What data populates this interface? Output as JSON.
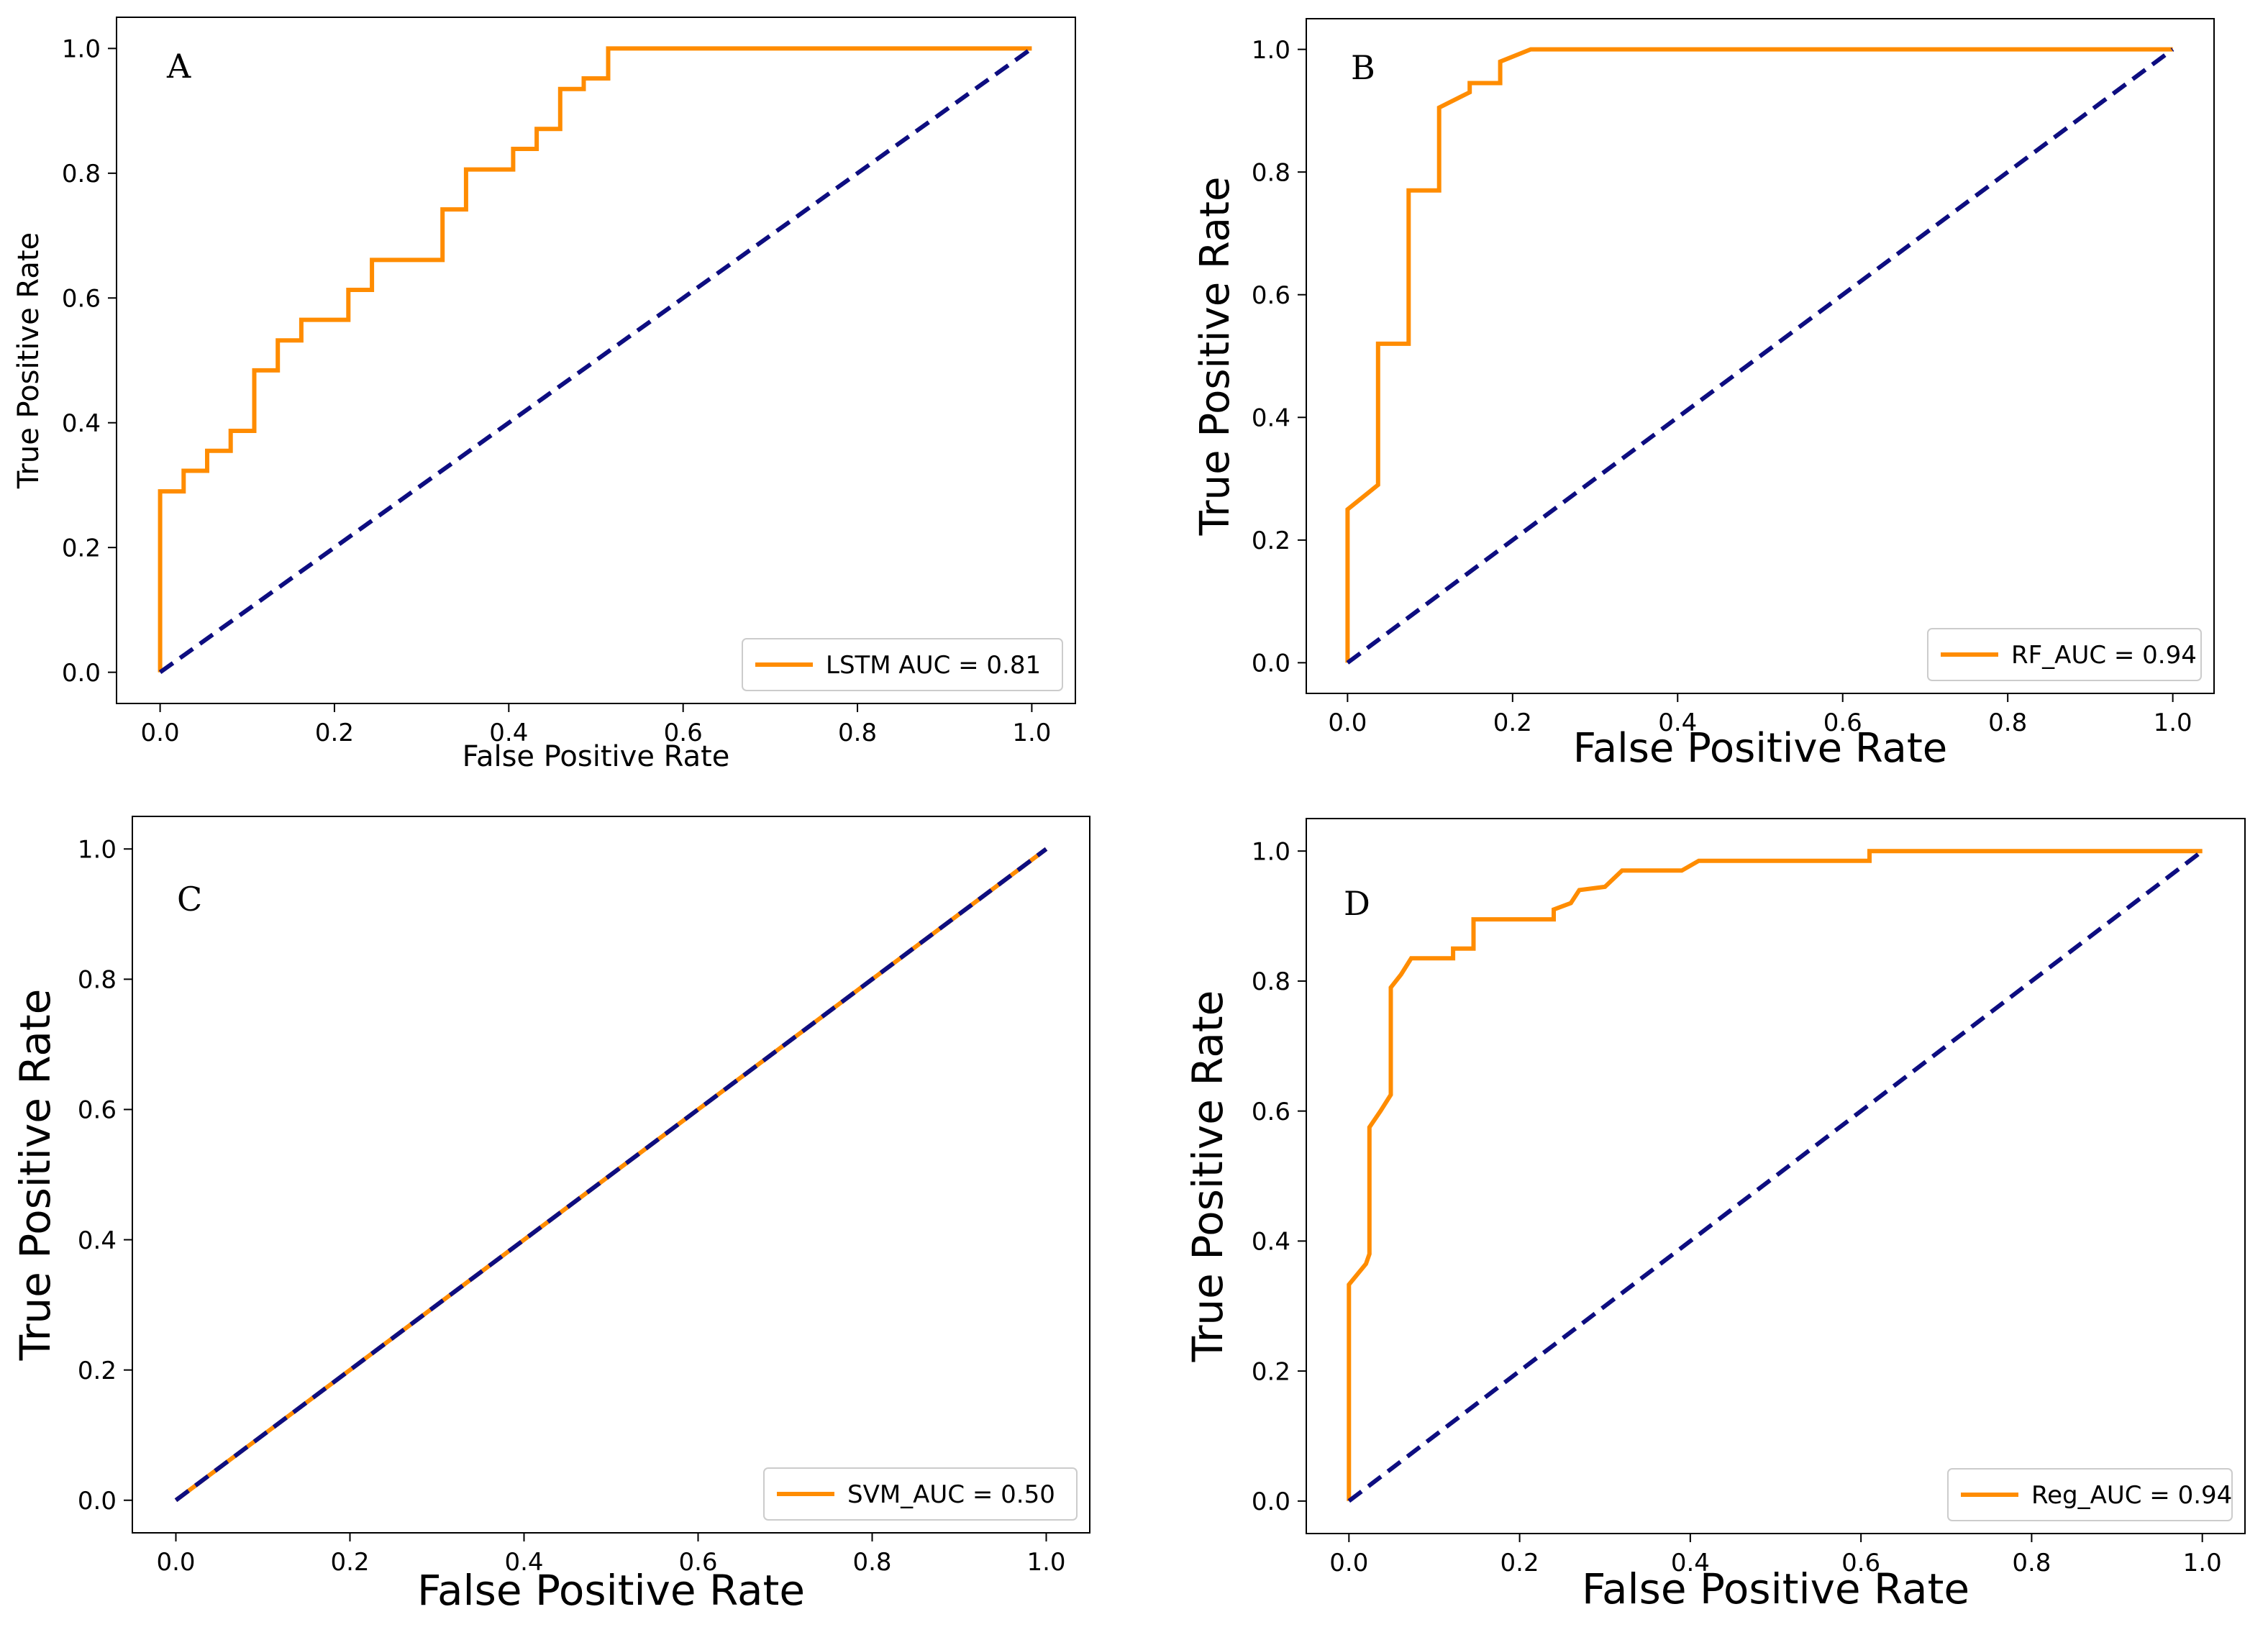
{
  "figure": {
    "roc_color": "#FF8C00",
    "chance_color": "#0D0D80"
  },
  "chart_data": [
    {
      "type": "line",
      "panel": "A",
      "xlabel": "False Positive Rate",
      "ylabel": "True Positive Rate",
      "xlim": [
        -0.05,
        1.05
      ],
      "ylim": [
        -0.05,
        1.05
      ],
      "xticks": [
        "0.0",
        "0.2",
        "0.4",
        "0.6",
        "0.8",
        "1.0"
      ],
      "yticks": [
        "0.0",
        "0.2",
        "0.4",
        "0.6",
        "0.8",
        "1.0"
      ],
      "legend": "LSTM AUC = 0.81",
      "legend_position": "lower-right",
      "series": [
        {
          "name": "LSTM AUC = 0.81",
          "x": [
            0,
            0,
            0.027,
            0.027,
            0.054,
            0.054,
            0.081,
            0.081,
            0.108,
            0.108,
            0.135,
            0.135,
            0.162,
            0.162,
            0.216,
            0.216,
            0.243,
            0.243,
            0.324,
            0.324,
            0.351,
            0.351,
            0.405,
            0.405,
            0.432,
            0.432,
            0.459,
            0.459,
            0.486,
            0.486,
            0.514,
            0.514,
            1.0
          ],
          "y": [
            0,
            0.29,
            0.29,
            0.323,
            0.323,
            0.355,
            0.355,
            0.387,
            0.387,
            0.484,
            0.484,
            0.532,
            0.532,
            0.565,
            0.565,
            0.613,
            0.613,
            0.661,
            0.661,
            0.742,
            0.742,
            0.806,
            0.806,
            0.839,
            0.839,
            0.871,
            0.871,
            0.935,
            0.935,
            0.952,
            0.952,
            1.0,
            1.0
          ]
        },
        {
          "name": "chance",
          "x": [
            0,
            1
          ],
          "y": [
            0,
            1
          ]
        }
      ]
    },
    {
      "type": "line",
      "panel": "B",
      "xlabel": "False Positive Rate",
      "ylabel": "True Positive Rate",
      "xlim": [
        -0.05,
        1.05
      ],
      "ylim": [
        -0.05,
        1.05
      ],
      "xticks": [
        "0.0",
        "0.2",
        "0.4",
        "0.6",
        "0.8",
        "1.0"
      ],
      "yticks": [
        "0.0",
        "0.2",
        "0.4",
        "0.6",
        "0.8",
        "1.0"
      ],
      "legend": "RF_AUC = 0.94",
      "legend_position": "lower-right",
      "series": [
        {
          "name": "RF_AUC = 0.94",
          "x": [
            0,
            0,
            0.037,
            0.037,
            0.074,
            0.074,
            0.111,
            0.111,
            0.148,
            0.148,
            0.185,
            0.185,
            0.222,
            1.0
          ],
          "y": [
            0,
            0.25,
            0.29,
            0.52,
            0.52,
            0.77,
            0.77,
            0.905,
            0.93,
            0.945,
            0.945,
            0.98,
            1.0,
            1.0
          ]
        },
        {
          "name": "chance",
          "x": [
            0,
            1
          ],
          "y": [
            0,
            1
          ]
        }
      ]
    },
    {
      "type": "line",
      "panel": "C",
      "xlabel": "False Positive Rate",
      "ylabel": "True Positive Rate",
      "xlim": [
        -0.05,
        1.05
      ],
      "ylim": [
        -0.05,
        1.05
      ],
      "xticks": [
        "0.0",
        "0.2",
        "0.4",
        "0.6",
        "0.8",
        "1.0"
      ],
      "yticks": [
        "0.0",
        "0.2",
        "0.4",
        "0.6",
        "0.8",
        "1.0"
      ],
      "legend": "SVM_AUC = 0.50",
      "legend_position": "lower-right",
      "series": [
        {
          "name": "SVM_AUC = 0.50",
          "x": [
            0,
            1
          ],
          "y": [
            0,
            1
          ]
        },
        {
          "name": "chance",
          "x": [
            0,
            1
          ],
          "y": [
            0,
            1
          ]
        }
      ]
    },
    {
      "type": "line",
      "panel": "D",
      "xlabel": "False Positive Rate",
      "ylabel": "True Positive Rate",
      "xlim": [
        -0.05,
        1.05
      ],
      "ylim": [
        -0.05,
        1.05
      ],
      "xticks": [
        "0.0",
        "0.2",
        "0.4",
        "0.6",
        "0.8",
        "1.0"
      ],
      "yticks": [
        "0.0",
        "0.2",
        "0.4",
        "0.6",
        "0.8",
        "1.0"
      ],
      "legend": "Reg_AUC = 0.94",
      "legend_position": "lower-right",
      "series": [
        {
          "name": "Reg_AUC = 0.94",
          "x": [
            0,
            0,
            0.02,
            0.024,
            0.024,
            0.037,
            0.049,
            0.049,
            0.061,
            0.073,
            0.122,
            0.122,
            0.146,
            0.146,
            0.24,
            0.24,
            0.26,
            0.27,
            0.3,
            0.32,
            0.39,
            0.41,
            0.61,
            0.61,
            1.0
          ],
          "y": [
            0,
            0.333,
            0.365,
            0.38,
            0.575,
            0.6,
            0.625,
            0.79,
            0.81,
            0.835,
            0.835,
            0.85,
            0.85,
            0.895,
            0.895,
            0.91,
            0.92,
            0.94,
            0.945,
            0.97,
            0.97,
            0.985,
            0.985,
            1.0,
            1.0
          ]
        },
        {
          "name": "chance",
          "x": [
            0,
            1
          ],
          "y": [
            0,
            1
          ]
        }
      ]
    }
  ]
}
